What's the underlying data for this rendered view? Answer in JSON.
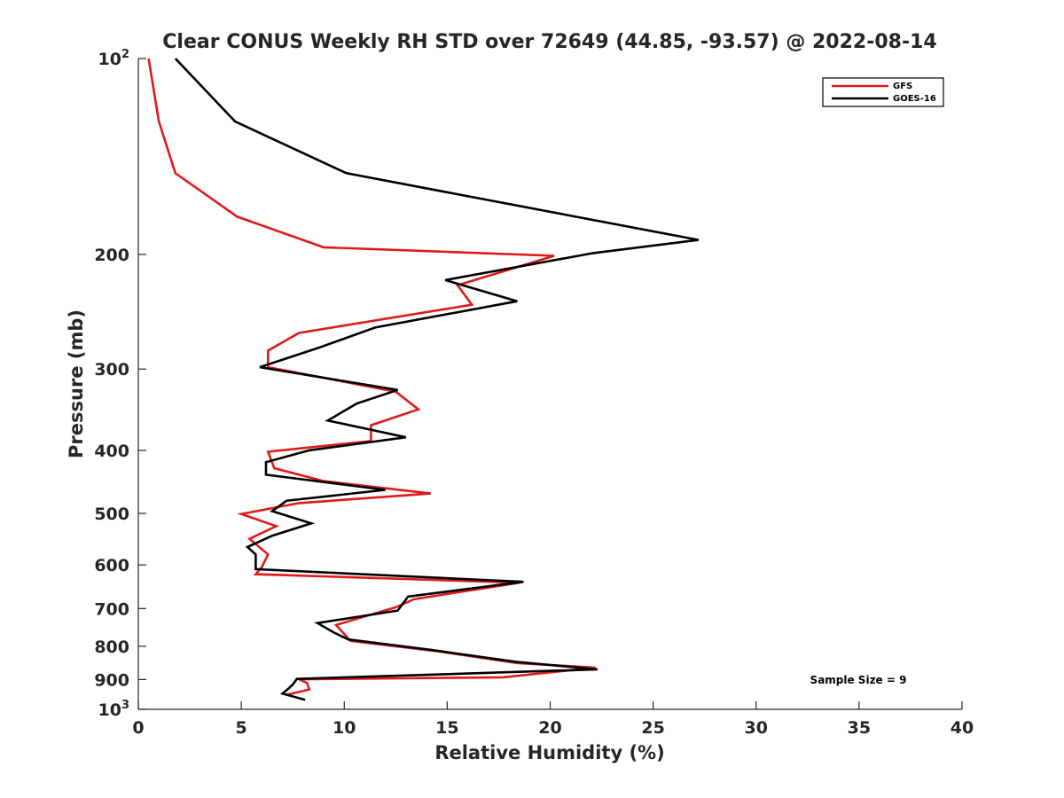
{
  "chart_data": {
    "type": "line",
    "title": "Clear CONUS Weekly RH STD over 72649 (44.85, -93.57) @ 2022-08-14",
    "xlabel": "Relative Humidity (%)",
    "ylabel": "Pressure (mb)",
    "xlim": [
      0,
      40
    ],
    "ylim": [
      100,
      1000
    ],
    "y_scale": "log",
    "y_reversed": true,
    "grid": false,
    "legend_position": "top-right",
    "x_ticks": [
      0,
      5,
      10,
      15,
      20,
      25,
      30,
      35,
      40
    ],
    "y_ticks": [
      {
        "value": 100,
        "base": "10",
        "exp": "2"
      },
      {
        "value": 200,
        "label": "200"
      },
      {
        "value": 300,
        "label": "300"
      },
      {
        "value": 400,
        "label": "400"
      },
      {
        "value": 500,
        "label": "500"
      },
      {
        "value": 600,
        "label": "600"
      },
      {
        "value": 700,
        "label": "700"
      },
      {
        "value": 800,
        "label": "800"
      },
      {
        "value": 900,
        "label": "900"
      },
      {
        "value": 1000,
        "base": "10",
        "exp": "3"
      }
    ],
    "annotation": "Sample Size = 9",
    "series": [
      {
        "name": "GFS",
        "color": "#e0191b",
        "points": [
          [
            0.5,
            100
          ],
          [
            1.0,
            125
          ],
          [
            1.8,
            150
          ],
          [
            4.8,
            175
          ],
          [
            9.0,
            195
          ],
          [
            20.2,
            201
          ],
          [
            15.5,
            223
          ],
          [
            16.2,
            239
          ],
          [
            7.8,
            264
          ],
          [
            6.3,
            281
          ],
          [
            6.3,
            298
          ],
          [
            12.5,
            325
          ],
          [
            13.6,
            346
          ],
          [
            11.3,
            366
          ],
          [
            11.3,
            387
          ],
          [
            6.3,
            402
          ],
          [
            6.6,
            426
          ],
          [
            9.0,
            446
          ],
          [
            14.2,
            466
          ],
          [
            7.8,
            482
          ],
          [
            5.0,
            501
          ],
          [
            6.7,
            523
          ],
          [
            5.4,
            547
          ],
          [
            6.3,
            578
          ],
          [
            6.0,
            604
          ],
          [
            5.7,
            620
          ],
          [
            18.5,
            639
          ],
          [
            13.4,
            677
          ],
          [
            12.5,
            697
          ],
          [
            9.6,
            742
          ],
          [
            10.3,
            785
          ],
          [
            14.5,
            814
          ],
          [
            18.4,
            849
          ],
          [
            22.2,
            863
          ],
          [
            17.7,
            893
          ],
          [
            7.8,
            899
          ],
          [
            8.2,
            911
          ],
          [
            8.3,
            932
          ],
          [
            7.2,
            950
          ]
        ]
      },
      {
        "name": "GOES-16",
        "color": "#000000",
        "points": [
          [
            1.8,
            100
          ],
          [
            4.7,
            125
          ],
          [
            10.1,
            150
          ],
          [
            27.2,
            190
          ],
          [
            22.1,
            199
          ],
          [
            14.9,
            219
          ],
          [
            18.4,
            236
          ],
          [
            11.5,
            259
          ],
          [
            8.8,
            278
          ],
          [
            5.9,
            298
          ],
          [
            12.6,
            323
          ],
          [
            10.6,
            339
          ],
          [
            9.2,
            360
          ],
          [
            13.0,
            382
          ],
          [
            8.3,
            400
          ],
          [
            6.2,
            417
          ],
          [
            6.2,
            436
          ],
          [
            12.0,
            460
          ],
          [
            7.2,
            478
          ],
          [
            6.5,
            496
          ],
          [
            8.4,
            518
          ],
          [
            6.5,
            541
          ],
          [
            5.3,
            563
          ],
          [
            5.7,
            578
          ],
          [
            5.7,
            609
          ],
          [
            18.7,
            637
          ],
          [
            13.1,
            671
          ],
          [
            12.6,
            705
          ],
          [
            8.7,
            737
          ],
          [
            9.5,
            762
          ],
          [
            10.2,
            781
          ],
          [
            14.3,
            811
          ],
          [
            18.3,
            845
          ],
          [
            22.3,
            868
          ],
          [
            7.7,
            898
          ],
          [
            7.5,
            916
          ],
          [
            7.3,
            929
          ],
          [
            7.0,
            946
          ],
          [
            8.1,
            967
          ]
        ]
      }
    ]
  }
}
